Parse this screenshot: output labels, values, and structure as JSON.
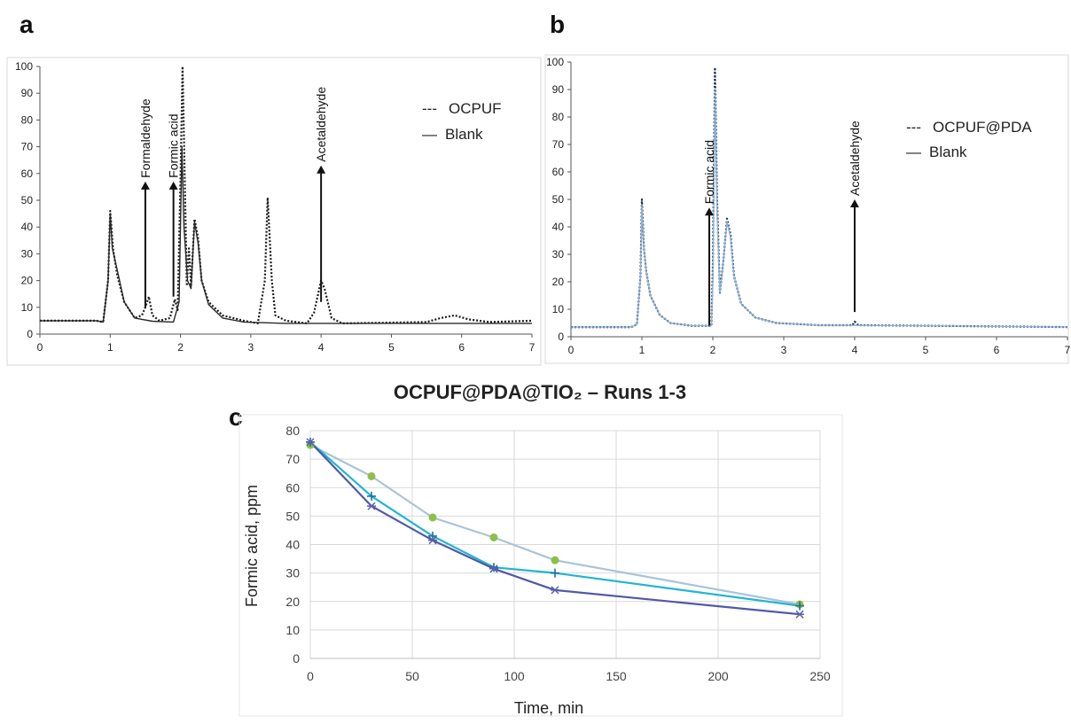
{
  "figure": {
    "panel_labels": [
      "a",
      "b",
      "c"
    ]
  },
  "chart_data": [
    {
      "id": "a",
      "type": "line",
      "xlim": [
        0,
        7
      ],
      "ylim": [
        0,
        100
      ],
      "x_ticks": [
        "0",
        "1",
        "2",
        "3",
        "4",
        "5",
        "6",
        "7"
      ],
      "y_ticks": [
        "0",
        "10",
        "20",
        "30",
        "40",
        "50",
        "60",
        "70",
        "80",
        "90",
        "100"
      ],
      "legend": [
        {
          "marker": "---",
          "label": "OCPUF"
        },
        {
          "marker": "—",
          "label": "Blank"
        }
      ],
      "annotations": [
        {
          "text": "Formaldehyde",
          "x": 1.5,
          "y_from": 10,
          "y_to": 57
        },
        {
          "text": "Formic acid",
          "x": 1.9,
          "y_from": 14,
          "y_to": 57
        },
        {
          "text": "Acetaldehyde",
          "x": 4.0,
          "y_from": 12,
          "y_to": 63
        }
      ],
      "series": [
        {
          "name": "OCPUF",
          "style": "dotted",
          "color": "#1a1a1a",
          "points": [
            [
              0,
              5
            ],
            [
              0.8,
              5
            ],
            [
              0.9,
              4.5
            ],
            [
              0.97,
              20
            ],
            [
              1.0,
              46
            ],
            [
              1.04,
              32
            ],
            [
              1.1,
              22
            ],
            [
              1.2,
              12
            ],
            [
              1.35,
              6
            ],
            [
              1.45,
              7
            ],
            [
              1.5,
              10
            ],
            [
              1.55,
              14
            ],
            [
              1.6,
              7
            ],
            [
              1.7,
              5
            ],
            [
              1.85,
              6
            ],
            [
              1.92,
              13
            ],
            [
              1.96,
              9
            ],
            [
              2.0,
              58
            ],
            [
              2.03,
              100
            ],
            [
              2.06,
              60
            ],
            [
              2.09,
              18
            ],
            [
              2.12,
              32
            ],
            [
              2.15,
              18
            ],
            [
              2.2,
              43
            ],
            [
              2.25,
              36
            ],
            [
              2.3,
              20
            ],
            [
              2.4,
              12
            ],
            [
              2.6,
              7
            ],
            [
              2.9,
              5
            ],
            [
              3.1,
              4
            ],
            [
              3.2,
              20
            ],
            [
              3.24,
              51
            ],
            [
              3.3,
              20
            ],
            [
              3.35,
              7
            ],
            [
              3.5,
              5
            ],
            [
              3.8,
              4
            ],
            [
              3.9,
              8
            ],
            [
              4.0,
              20
            ],
            [
              4.05,
              17
            ],
            [
              4.15,
              6
            ],
            [
              4.3,
              4
            ],
            [
              5.5,
              4.5
            ],
            [
              5.7,
              6
            ],
            [
              5.9,
              7
            ],
            [
              6.1,
              5.5
            ],
            [
              6.4,
              4.5
            ],
            [
              7,
              5
            ]
          ]
        },
        {
          "name": "Blank",
          "style": "solid",
          "color": "#2a2a2a",
          "points": [
            [
              0,
              5
            ],
            [
              0.8,
              5
            ],
            [
              0.9,
              4.5
            ],
            [
              0.97,
              20
            ],
            [
              1.0,
              45
            ],
            [
              1.03,
              32
            ],
            [
              1.1,
              24
            ],
            [
              1.2,
              12
            ],
            [
              1.35,
              6
            ],
            [
              1.6,
              4.8
            ],
            [
              1.9,
              4.5
            ],
            [
              1.98,
              12
            ],
            [
              2.02,
              70
            ],
            [
              2.05,
              40
            ],
            [
              2.1,
              20
            ],
            [
              2.15,
              17
            ],
            [
              2.2,
              42
            ],
            [
              2.25,
              34
            ],
            [
              2.3,
              20
            ],
            [
              2.4,
              11
            ],
            [
              2.6,
              6
            ],
            [
              2.9,
              4.5
            ],
            [
              3.5,
              4
            ],
            [
              5,
              4
            ],
            [
              7,
              4
            ]
          ]
        }
      ]
    },
    {
      "id": "b",
      "type": "line",
      "xlim": [
        0,
        7
      ],
      "ylim": [
        0,
        100
      ],
      "x_ticks": [
        "0",
        "1",
        "2",
        "3",
        "4",
        "5",
        "6",
        "7"
      ],
      "y_ticks": [
        "0",
        "10",
        "20",
        "30",
        "40",
        "50",
        "60",
        "70",
        "80",
        "90",
        "100"
      ],
      "legend": [
        {
          "marker": "---",
          "label": "OCPUF@PDA"
        },
        {
          "marker": "—",
          "label": "Blank"
        }
      ],
      "annotations": [
        {
          "text": "Formic acid",
          "x": 1.95,
          "y_from": 4,
          "y_to": 47
        },
        {
          "text": "Acetaldehyde",
          "x": 4.0,
          "y_from": 9,
          "y_to": 50
        }
      ],
      "series": [
        {
          "name": "OCPUF@PDA",
          "style": "dotted",
          "color": "#1f2a44",
          "points": [
            [
              0,
              3.5
            ],
            [
              0.85,
              3.5
            ],
            [
              0.93,
              4.5
            ],
            [
              0.98,
              22
            ],
            [
              1.0,
              50
            ],
            [
              1.03,
              32
            ],
            [
              1.06,
              24
            ],
            [
              1.12,
              15
            ],
            [
              1.25,
              8
            ],
            [
              1.4,
              5
            ],
            [
              1.7,
              4
            ],
            [
              1.98,
              4
            ],
            [
              2.0,
              25
            ],
            [
              2.03,
              98
            ],
            [
              2.06,
              50
            ],
            [
              2.1,
              16
            ],
            [
              2.15,
              28
            ],
            [
              2.2,
              43
            ],
            [
              2.25,
              37
            ],
            [
              2.3,
              22
            ],
            [
              2.4,
              12
            ],
            [
              2.6,
              7
            ],
            [
              2.9,
              5
            ],
            [
              3.5,
              4.2
            ],
            [
              3.97,
              4.2
            ],
            [
              4.0,
              5.5
            ],
            [
              4.05,
              4.2
            ],
            [
              5,
              4
            ],
            [
              7,
              3.5
            ]
          ]
        },
        {
          "name": "Blank",
          "style": "solid",
          "color": "#8db4d8",
          "points": [
            [
              0,
              3.5
            ],
            [
              0.85,
              3.5
            ],
            [
              0.93,
              4.5
            ],
            [
              0.98,
              22
            ],
            [
              1.0,
              48
            ],
            [
              1.03,
              32
            ],
            [
              1.06,
              24
            ],
            [
              1.12,
              15
            ],
            [
              1.25,
              8
            ],
            [
              1.4,
              5
            ],
            [
              1.7,
              4
            ],
            [
              1.98,
              4
            ],
            [
              2.0,
              20
            ],
            [
              2.03,
              90
            ],
            [
              2.06,
              45
            ],
            [
              2.1,
              16
            ],
            [
              2.15,
              28
            ],
            [
              2.2,
              42
            ],
            [
              2.25,
              36
            ],
            [
              2.3,
              22
            ],
            [
              2.4,
              12
            ],
            [
              2.6,
              7
            ],
            [
              2.9,
              5
            ],
            [
              3.5,
              4.2
            ],
            [
              5,
              4
            ],
            [
              7,
              3.5
            ]
          ]
        }
      ]
    },
    {
      "id": "c",
      "type": "line",
      "title": "OCPUF@PDA@TIO₂ – Runs 1-3",
      "xlabel": "Time, min",
      "ylabel": "Formic  acid, ppm",
      "xlim": [
        0,
        250
      ],
      "ylim": [
        0,
        80
      ],
      "x_ticks": [
        "0",
        "50",
        "100",
        "150",
        "200",
        "250"
      ],
      "y_ticks": [
        "0",
        "10",
        "20",
        "30",
        "40",
        "50",
        "60",
        "70",
        "80"
      ],
      "grid": true,
      "x": [
        0,
        30,
        60,
        90,
        120,
        240
      ],
      "series": [
        {
          "color": "#a9c4d8",
          "marker": "circle",
          "marker_color": "#8dc04a",
          "values": [
            75,
            64,
            49.5,
            42.5,
            34.5,
            19
          ]
        },
        {
          "color": "#21b5d3",
          "marker": "plus",
          "marker_color": "#1e6fa0",
          "values": [
            76,
            57,
            43,
            32,
            30,
            18.5
          ]
        },
        {
          "color": "#4f5aa6",
          "marker": "star",
          "marker_color": "#5a5fa8",
          "values": [
            76,
            53.5,
            41.5,
            31.5,
            24,
            15.5
          ]
        }
      ]
    }
  ]
}
